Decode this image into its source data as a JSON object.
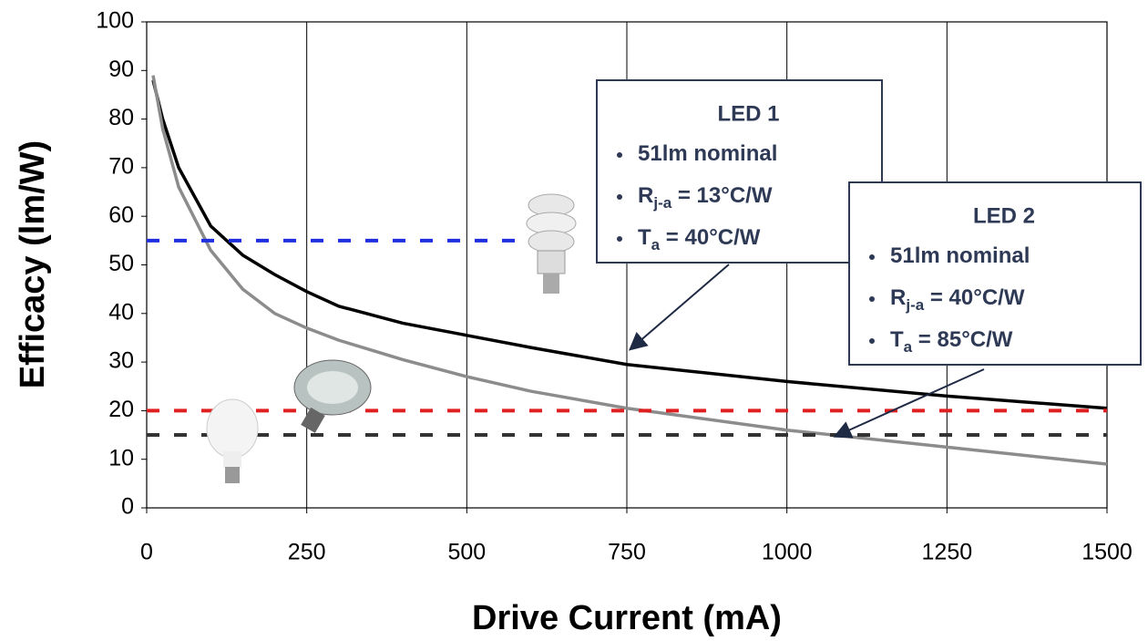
{
  "chart_data": {
    "type": "line",
    "xlabel": "Drive Current (mA)",
    "ylabel": "Efficacy (lm/W)",
    "xlim": [
      0,
      1500
    ],
    "xticks": [
      0,
      250,
      500,
      750,
      1000,
      1250,
      1500
    ],
    "ylim": [
      0,
      100
    ],
    "yticks": [
      0,
      10,
      20,
      30,
      40,
      50,
      60,
      70,
      80,
      90,
      100
    ],
    "grid": "x",
    "series": [
      {
        "name": "LED 1",
        "color": "#000000",
        "style": "solid",
        "x": [
          10,
          25,
          50,
          100,
          150,
          200,
          250,
          300,
          400,
          500,
          600,
          750,
          1000,
          1250,
          1500
        ],
        "values": [
          88,
          80,
          70,
          58,
          52,
          48,
          44.5,
          41.5,
          38,
          35.5,
          33,
          29.5,
          26,
          23,
          20.5
        ]
      },
      {
        "name": "LED 2",
        "color": "#8c8c8c",
        "style": "solid",
        "x": [
          10,
          25,
          50,
          100,
          150,
          200,
          250,
          300,
          400,
          500,
          600,
          750,
          1000,
          1250,
          1500
        ],
        "values": [
          89,
          78,
          66,
          53,
          45,
          40,
          37,
          34.5,
          30.5,
          27,
          24,
          20.5,
          16,
          12.5,
          9
        ]
      },
      {
        "color": "#1f2fe0",
        "style": "dashed",
        "x": [
          0,
          675
        ],
        "values": [
          55,
          55
        ]
      },
      {
        "color": "#e02020",
        "style": "dashed",
        "x": [
          0,
          1500
        ],
        "values": [
          20,
          20
        ]
      },
      {
        "color": "#333333",
        "style": "dashed",
        "x": [
          0,
          1500
        ],
        "values": [
          15,
          15
        ]
      }
    ],
    "annotations": [
      {
        "title": "LED 1",
        "bullets": [
          {
            "main": "51lm nominal"
          },
          {
            "main": "R",
            "sub": "j-a",
            "rest": " = 13°C/W"
          },
          {
            "main": "T",
            "sub": "a",
            "rest": " = 40°C/W"
          }
        ]
      },
      {
        "title": "LED 2",
        "bullets": [
          {
            "main": "51lm nominal"
          },
          {
            "main": "R",
            "sub": "j-a",
            "rest": " = 40°C/W"
          },
          {
            "main": "T",
            "sub": "a",
            "rest": " = 85°C/W"
          }
        ]
      }
    ]
  }
}
